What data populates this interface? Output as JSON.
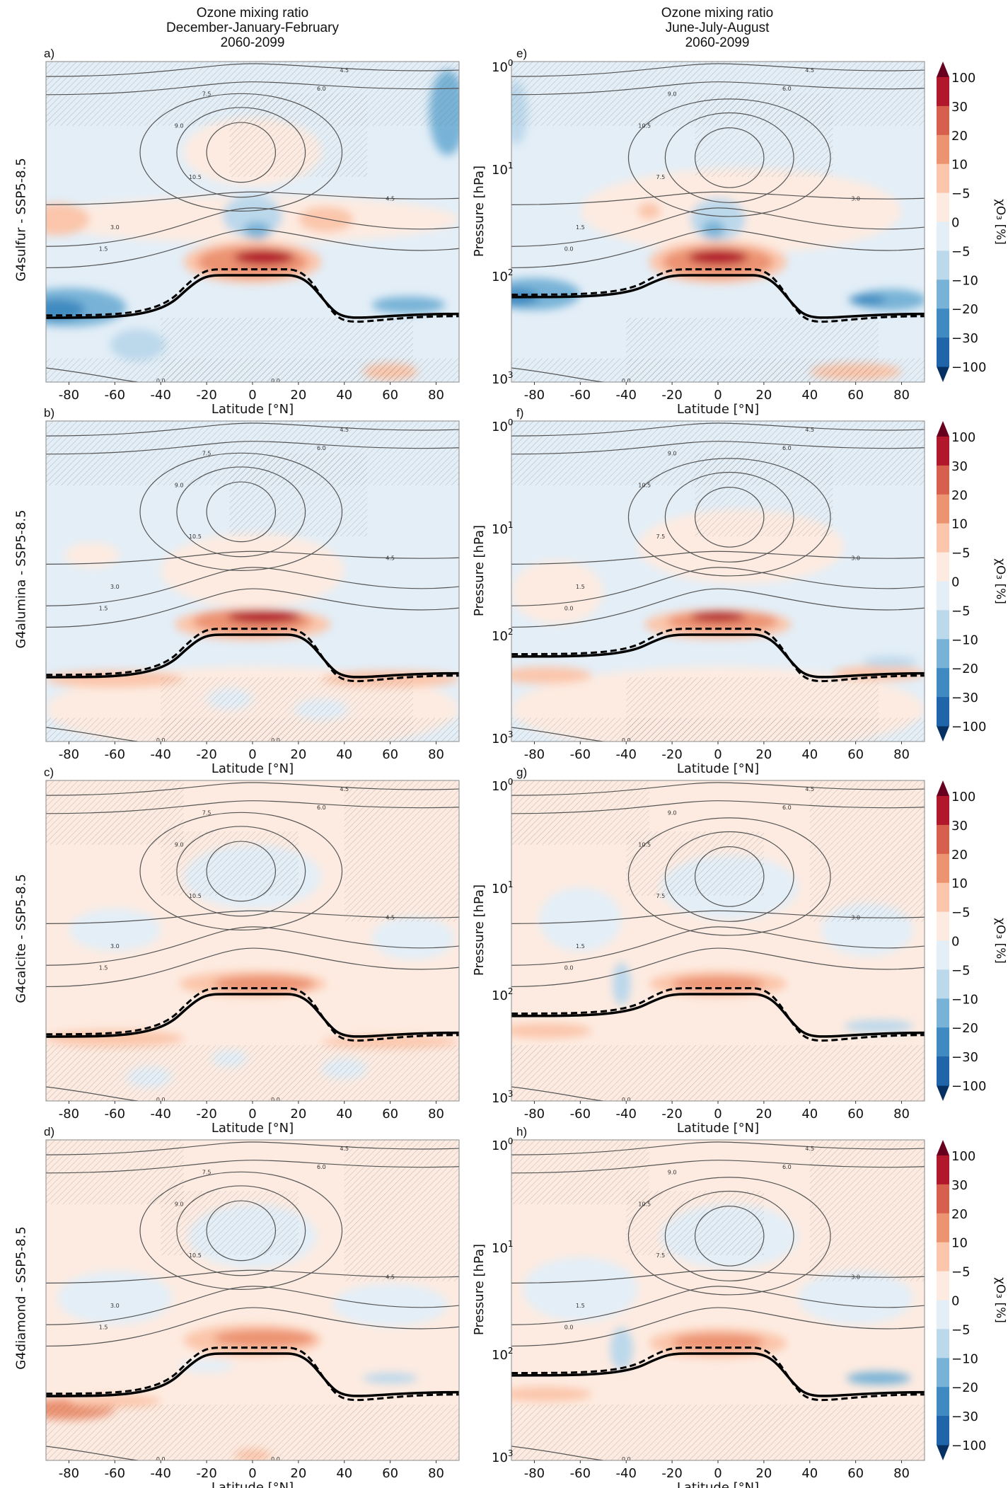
{
  "columns": [
    {
      "title": [
        "Ozone mixing ratio",
        "December-January-February",
        "2060-2099"
      ]
    },
    {
      "title": [
        "Ozone mixing ratio",
        "June-July-August",
        "2060-2099"
      ]
    }
  ],
  "rows": [
    {
      "label": "G4sulfur - SSP5-8.5"
    },
    {
      "label": "G4alumina - SSP5-8.5"
    },
    {
      "label": "G4calcite - SSP5-8.5"
    },
    {
      "label": "G4diamond - SSP5-8.5"
    }
  ],
  "axes": {
    "xlabel": "Latitude [°N]",
    "ylabel": "Pressure [hPa]",
    "xticks": [
      "-80",
      "-60",
      "-40",
      "-20",
      "0",
      "20",
      "40",
      "60",
      "80"
    ],
    "xtick_values": [
      -80,
      -60,
      -40,
      -20,
      0,
      20,
      40,
      60,
      80
    ],
    "yticks": [
      {
        "base": "10",
        "exp": "0",
        "value": 1
      },
      {
        "base": "10",
        "exp": "1",
        "value": 10
      },
      {
        "base": "10",
        "exp": "2",
        "value": 100
      },
      {
        "base": "10",
        "exp": "3",
        "value": 1000
      }
    ],
    "xlim": [
      -90,
      90
    ],
    "ylim": [
      1000,
      1
    ]
  },
  "colorbar": {
    "label": "χO₃ [%]",
    "ticks": [
      "100",
      "30",
      "20",
      "10",
      "−5",
      "0",
      "−5",
      "−10",
      "−20",
      "−30",
      "−100"
    ],
    "colors": [
      "#b2182b",
      "#d6604d",
      "#ec9372",
      "#fbc6ab",
      "#fdebe1",
      "#e3eef7",
      "#bcd8eb",
      "#78b3d7",
      "#3f8bc1",
      "#2064aa"
    ],
    "extend_max_color": "#67001f",
    "extend_min_color": "#053061"
  },
  "chart_data": [
    {
      "panel": "a)",
      "type": "heatmap",
      "season": "DJF",
      "experiment": "G4sulfur - SSP5-8.5",
      "background": -3,
      "contour_labels": [
        "4.5",
        "6.0",
        "7.5",
        "9.0",
        "10.5",
        "4.5",
        "3.0",
        "1.5",
        "0.0",
        "0.0"
      ],
      "features": [
        [
          0,
          30,
          3,
          90,
          0.22
        ],
        [
          0,
          7,
          3,
          30,
          0.32
        ],
        [
          -85,
          30,
          7,
          14,
          0.15
        ],
        [
          32,
          30,
          7,
          12,
          0.12
        ],
        [
          0,
          28,
          -7,
          13,
          0.2
        ],
        [
          2,
          38,
          -15,
          6,
          0.08
        ],
        [
          0,
          75,
          8,
          30,
          0.2
        ],
        [
          0,
          75,
          18,
          24,
          0.15
        ],
        [
          5,
          68,
          35,
          13,
          0.07
        ],
        [
          -80,
          200,
          -12,
          25,
          0.18
        ],
        [
          -85,
          210,
          -25,
          12,
          0.1
        ],
        [
          68,
          190,
          -10,
          16,
          0.08
        ],
        [
          -50,
          450,
          -7,
          12,
          0.15
        ],
        [
          60,
          800,
          6,
          12,
          0.08
        ],
        [
          0,
          700,
          -3,
          30,
          0.2
        ],
        [
          85,
          3,
          -12,
          8,
          0.4
        ]
      ]
    },
    {
      "panel": "b)",
      "type": "heatmap",
      "season": "DJF",
      "experiment": "G4alumina - SSP5-8.5",
      "background": -3,
      "contour_labels": [
        "4.5",
        "6.0",
        "7.5",
        "9.0",
        "10.5",
        "4.5",
        "3.0",
        "1.5",
        "0.0",
        "0.0"
      ],
      "features": [
        [
          0,
          25,
          3,
          40,
          0.35
        ],
        [
          -70,
          18,
          3,
          12,
          0.12
        ],
        [
          0,
          80,
          8,
          34,
          0.15
        ],
        [
          0,
          75,
          20,
          26,
          0.12
        ],
        [
          5,
          68,
          35,
          16,
          0.06
        ],
        [
          0,
          500,
          4,
          90,
          0.4
        ],
        [
          -60,
          260,
          10,
          30,
          0.08
        ],
        [
          60,
          260,
          10,
          30,
          0.08
        ],
        [
          -10,
          400,
          -4,
          10,
          0.1
        ],
        [
          30,
          500,
          -4,
          12,
          0.1
        ]
      ]
    },
    {
      "panel": "c)",
      "type": "heatmap",
      "season": "DJF",
      "experiment": "G4calcite - SSP5-8.5",
      "background": 3,
      "contour_labels": [
        "4.5",
        "6.0",
        "7.5",
        "9.0",
        "10.5",
        "4.5",
        "3.0",
        "1.5",
        "0.0",
        "0.0"
      ],
      "features": [
        [
          0,
          8,
          -3,
          30,
          0.3
        ],
        [
          -60,
          25,
          -3,
          20,
          0.2
        ],
        [
          70,
          30,
          -3,
          18,
          0.2
        ],
        [
          0,
          80,
          8,
          32,
          0.12
        ],
        [
          5,
          80,
          14,
          22,
          0.08
        ],
        [
          -60,
          260,
          10,
          30,
          0.08
        ],
        [
          60,
          280,
          6,
          30,
          0.06
        ],
        [
          -10,
          400,
          -4,
          8,
          0.08
        ],
        [
          -45,
          600,
          -3,
          10,
          0.1
        ],
        [
          40,
          500,
          -3,
          10,
          0.1
        ]
      ]
    },
    {
      "panel": "d)",
      "type": "heatmap",
      "season": "DJF",
      "experiment": "G4diamond - SSP5-8.5",
      "background": 3,
      "contour_labels": [
        "4.5",
        "6.0",
        "7.5",
        "9.0",
        "10.5",
        "4.5",
        "3.0",
        "1.5",
        "0.0",
        "0.0"
      ],
      "features": [
        [
          0,
          8,
          -3,
          28,
          0.3
        ],
        [
          -60,
          30,
          -3,
          25,
          0.25
        ],
        [
          60,
          35,
          -3,
          25,
          0.2
        ],
        [
          0,
          75,
          10,
          30,
          0.15
        ],
        [
          5,
          72,
          20,
          22,
          0.08
        ],
        [
          -80,
          330,
          12,
          20,
          0.1
        ],
        [
          60,
          170,
          -8,
          12,
          0.05
        ],
        [
          -20,
          130,
          -4,
          12,
          0.06
        ],
        [
          0,
          900,
          10,
          8,
          0.06
        ],
        [
          -60,
          280,
          8,
          20,
          0.06
        ]
      ]
    },
    {
      "panel": "e)",
      "type": "heatmap",
      "season": "JJA",
      "experiment": "G4sulfur - SSP5-8.5",
      "background": -3,
      "contour_labels": [
        "4.5",
        "6.0",
        "9.0",
        "10.5",
        "7.5",
        "3.0",
        "1.5",
        "0.0",
        "0.0"
      ],
      "features": [
        [
          10,
          25,
          3,
          70,
          0.4
        ],
        [
          -30,
          25,
          7,
          5,
          0.08
        ],
        [
          0,
          30,
          -7,
          12,
          0.2
        ],
        [
          -2,
          37,
          -15,
          5,
          0.08
        ],
        [
          0,
          75,
          8,
          30,
          0.2
        ],
        [
          0,
          75,
          18,
          24,
          0.15
        ],
        [
          0,
          68,
          35,
          13,
          0.07
        ],
        [
          -80,
          150,
          -12,
          20,
          0.15
        ],
        [
          -88,
          160,
          -22,
          10,
          0.08
        ],
        [
          75,
          170,
          -10,
          16,
          0.1
        ],
        [
          65,
          170,
          -20,
          8,
          0.05
        ],
        [
          60,
          800,
          6,
          20,
          0.08
        ],
        [
          -88,
          3,
          -7,
          5,
          0.3
        ]
      ]
    },
    {
      "panel": "f)",
      "type": "heatmap",
      "season": "JJA",
      "experiment": "G4alumina - SSP5-8.5",
      "background": -3,
      "contour_labels": [
        "4.5",
        "6.0",
        "9.0",
        "10.5",
        "7.5",
        "3.0",
        "1.5",
        "0.0",
        "0.0"
      ],
      "features": [
        [
          10,
          15,
          3,
          45,
          0.35
        ],
        [
          -70,
          40,
          3,
          20,
          0.3
        ],
        [
          0,
          80,
          8,
          32,
          0.14
        ],
        [
          2,
          75,
          20,
          24,
          0.1
        ],
        [
          0,
          68,
          35,
          12,
          0.05
        ],
        [
          0,
          500,
          4,
          90,
          0.4
        ],
        [
          -75,
          240,
          10,
          20,
          0.08
        ],
        [
          70,
          230,
          8,
          20,
          0.07
        ],
        [
          75,
          180,
          -8,
          12,
          0.05
        ]
      ]
    },
    {
      "panel": "g)",
      "type": "heatmap",
      "season": "JJA",
      "experiment": "G4calcite - SSP5-8.5",
      "background": 3,
      "contour_labels": [
        "4.5",
        "6.0",
        "9.0",
        "10.5",
        "7.5",
        "3.0",
        "1.5",
        "0.0",
        "0.0"
      ],
      "features": [
        [
          5,
          10,
          -3,
          30,
          0.3
        ],
        [
          -60,
          20,
          -3,
          18,
          0.3
        ],
        [
          65,
          25,
          -3,
          20,
          0.25
        ],
        [
          -42,
          80,
          -5,
          4,
          0.2
        ],
        [
          0,
          80,
          8,
          30,
          0.12
        ],
        [
          0,
          80,
          14,
          20,
          0.07
        ],
        [
          -75,
          220,
          8,
          20,
          0.07
        ],
        [
          70,
          200,
          -5,
          15,
          0.06
        ]
      ]
    },
    {
      "panel": "h)",
      "type": "heatmap",
      "season": "JJA",
      "experiment": "G4diamond - SSP5-8.5",
      "background": 3,
      "contour_labels": [
        "4.5",
        "6.0",
        "9.0",
        "10.5",
        "7.5",
        "3.0",
        "1.5",
        "0.0",
        "0.0"
      ],
      "features": [
        [
          5,
          8,
          -3,
          30,
          0.3
        ],
        [
          -60,
          25,
          -3,
          25,
          0.3
        ],
        [
          60,
          30,
          -3,
          25,
          0.25
        ],
        [
          -42,
          90,
          -7,
          5,
          0.2
        ],
        [
          0,
          80,
          8,
          30,
          0.14
        ],
        [
          0,
          78,
          18,
          20,
          0.08
        ],
        [
          70,
          170,
          -12,
          14,
          0.06
        ],
        [
          -75,
          240,
          8,
          20,
          0.07
        ]
      ]
    }
  ]
}
